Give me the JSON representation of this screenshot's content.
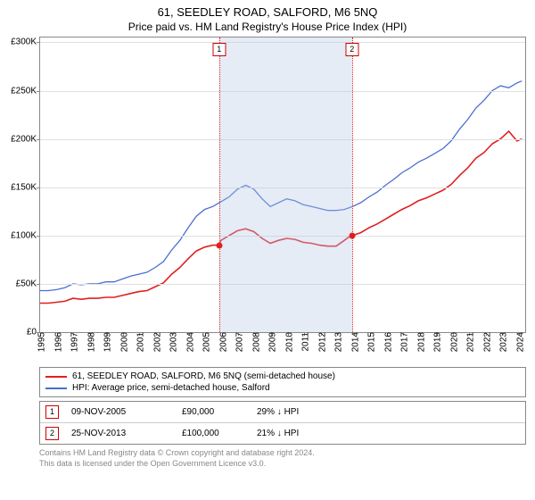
{
  "title": "61, SEEDLEY ROAD, SALFORD, M6 5NQ",
  "subtitle": "Price paid vs. HM Land Registry's House Price Index (HPI)",
  "chart": {
    "type": "line",
    "background_color": "#ffffff",
    "grid_color": "#e0e0e0",
    "border_color": "#888888",
    "x_years": [
      1995,
      1996,
      1997,
      1998,
      1999,
      2000,
      2001,
      2002,
      2003,
      2004,
      2005,
      2006,
      2007,
      2008,
      2009,
      2010,
      2011,
      2012,
      2013,
      2014,
      2015,
      2016,
      2017,
      2018,
      2019,
      2020,
      2021,
      2022,
      2023,
      2024
    ],
    "xlim": [
      1995,
      2024.5
    ],
    "ylim": [
      0,
      305000
    ],
    "yticks": [
      0,
      50000,
      100000,
      150000,
      200000,
      250000,
      300000
    ],
    "ytick_labels": [
      "£0",
      "£50K",
      "£100K",
      "£150K",
      "£200K",
      "£250K",
      "£300K"
    ],
    "label_fontsize": 10,
    "shade_band": {
      "from": 2005.85,
      "to": 2013.9,
      "color": "rgba(180,200,230,0.35)"
    },
    "vlines": [
      {
        "x": 2005.85,
        "color": "#e02020",
        "style": "dotted",
        "label": "1"
      },
      {
        "x": 2013.9,
        "color": "#e02020",
        "style": "dotted",
        "label": "2"
      }
    ],
    "series": [
      {
        "name": "HPI: Average price, semi-detached house, Salford",
        "color": "#4a6fd0",
        "width": 1.3,
        "points": [
          [
            1995,
            43000
          ],
          [
            1995.5,
            43000
          ],
          [
            1996,
            44000
          ],
          [
            1996.5,
            46000
          ],
          [
            1997,
            50000
          ],
          [
            1997.5,
            49000
          ],
          [
            1998,
            50000
          ],
          [
            1998.5,
            50000
          ],
          [
            1999,
            52000
          ],
          [
            1999.5,
            52000
          ],
          [
            2000,
            55000
          ],
          [
            2000.5,
            58000
          ],
          [
            2001,
            60000
          ],
          [
            2001.5,
            62000
          ],
          [
            2002,
            67000
          ],
          [
            2002.5,
            73000
          ],
          [
            2003,
            85000
          ],
          [
            2003.5,
            95000
          ],
          [
            2004,
            108000
          ],
          [
            2004.5,
            120000
          ],
          [
            2005,
            127000
          ],
          [
            2005.5,
            130000
          ],
          [
            2006,
            135000
          ],
          [
            2006.5,
            140000
          ],
          [
            2007,
            148000
          ],
          [
            2007.5,
            152000
          ],
          [
            2008,
            148000
          ],
          [
            2008.5,
            138000
          ],
          [
            2009,
            130000
          ],
          [
            2009.5,
            134000
          ],
          [
            2010,
            138000
          ],
          [
            2010.5,
            136000
          ],
          [
            2011,
            132000
          ],
          [
            2011.5,
            130000
          ],
          [
            2012,
            128000
          ],
          [
            2012.5,
            126000
          ],
          [
            2013,
            126000
          ],
          [
            2013.5,
            127000
          ],
          [
            2014,
            130000
          ],
          [
            2014.5,
            134000
          ],
          [
            2015,
            140000
          ],
          [
            2015.5,
            145000
          ],
          [
            2016,
            152000
          ],
          [
            2016.5,
            158000
          ],
          [
            2017,
            165000
          ],
          [
            2017.5,
            170000
          ],
          [
            2018,
            176000
          ],
          [
            2018.5,
            180000
          ],
          [
            2019,
            185000
          ],
          [
            2019.5,
            190000
          ],
          [
            2020,
            198000
          ],
          [
            2020.5,
            210000
          ],
          [
            2021,
            220000
          ],
          [
            2021.5,
            232000
          ],
          [
            2022,
            240000
          ],
          [
            2022.5,
            250000
          ],
          [
            2023,
            255000
          ],
          [
            2023.5,
            253000
          ],
          [
            2024,
            258000
          ],
          [
            2024.3,
            260000
          ]
        ]
      },
      {
        "name": "61, SEEDLEY ROAD, SALFORD, M6 5NQ (semi-detached house)",
        "color": "#e02020",
        "width": 1.6,
        "points": [
          [
            1995,
            30000
          ],
          [
            1995.5,
            30000
          ],
          [
            1996,
            31000
          ],
          [
            1996.5,
            32000
          ],
          [
            1997,
            35000
          ],
          [
            1997.5,
            34000
          ],
          [
            1998,
            35000
          ],
          [
            1998.5,
            35000
          ],
          [
            1999,
            36000
          ],
          [
            1999.5,
            36000
          ],
          [
            2000,
            38000
          ],
          [
            2000.5,
            40000
          ],
          [
            2001,
            42000
          ],
          [
            2001.5,
            43000
          ],
          [
            2002,
            47000
          ],
          [
            2002.5,
            51000
          ],
          [
            2003,
            60000
          ],
          [
            2003.5,
            67000
          ],
          [
            2004,
            76000
          ],
          [
            2004.5,
            84000
          ],
          [
            2005,
            88000
          ],
          [
            2005.5,
            90000
          ],
          [
            2005.85,
            90000
          ],
          [
            2006,
            95000
          ],
          [
            2006.5,
            100000
          ],
          [
            2007,
            105000
          ],
          [
            2007.5,
            107000
          ],
          [
            2008,
            104000
          ],
          [
            2008.5,
            97000
          ],
          [
            2009,
            92000
          ],
          [
            2009.5,
            95000
          ],
          [
            2010,
            97000
          ],
          [
            2010.5,
            96000
          ],
          [
            2011,
            93000
          ],
          [
            2011.5,
            92000
          ],
          [
            2012,
            90000
          ],
          [
            2012.5,
            89000
          ],
          [
            2013,
            89000
          ],
          [
            2013.5,
            95000
          ],
          [
            2013.9,
            100000
          ],
          [
            2014,
            100000
          ],
          [
            2014.5,
            103000
          ],
          [
            2015,
            108000
          ],
          [
            2015.5,
            112000
          ],
          [
            2016,
            117000
          ],
          [
            2016.5,
            122000
          ],
          [
            2017,
            127000
          ],
          [
            2017.5,
            131000
          ],
          [
            2018,
            136000
          ],
          [
            2018.5,
            139000
          ],
          [
            2019,
            143000
          ],
          [
            2019.5,
            147000
          ],
          [
            2020,
            153000
          ],
          [
            2020.5,
            162000
          ],
          [
            2021,
            170000
          ],
          [
            2021.5,
            180000
          ],
          [
            2022,
            186000
          ],
          [
            2022.5,
            195000
          ],
          [
            2023,
            200000
          ],
          [
            2023.5,
            208000
          ],
          [
            2024,
            198000
          ],
          [
            2024.3,
            200000
          ]
        ]
      }
    ],
    "sale_markers": [
      {
        "x": 2005.85,
        "y": 90000,
        "color": "#e02020"
      },
      {
        "x": 2013.9,
        "y": 100000,
        "color": "#e02020"
      }
    ]
  },
  "legend": {
    "items": [
      {
        "label": "61, SEEDLEY ROAD, SALFORD, M6 5NQ (semi-detached house)",
        "color": "#e02020"
      },
      {
        "label": "HPI: Average price, semi-detached house, Salford",
        "color": "#4a6fd0"
      }
    ]
  },
  "sales_table": {
    "rows": [
      {
        "index": "1",
        "date": "09-NOV-2005",
        "price": "£90,000",
        "diff": "29% ↓ HPI"
      },
      {
        "index": "2",
        "date": "25-NOV-2013",
        "price": "£100,000",
        "diff": "21% ↓ HPI"
      }
    ]
  },
  "footnote": {
    "line1": "Contains HM Land Registry data © Crown copyright and database right 2024.",
    "line2": "This data is licensed under the Open Government Licence v3.0."
  }
}
